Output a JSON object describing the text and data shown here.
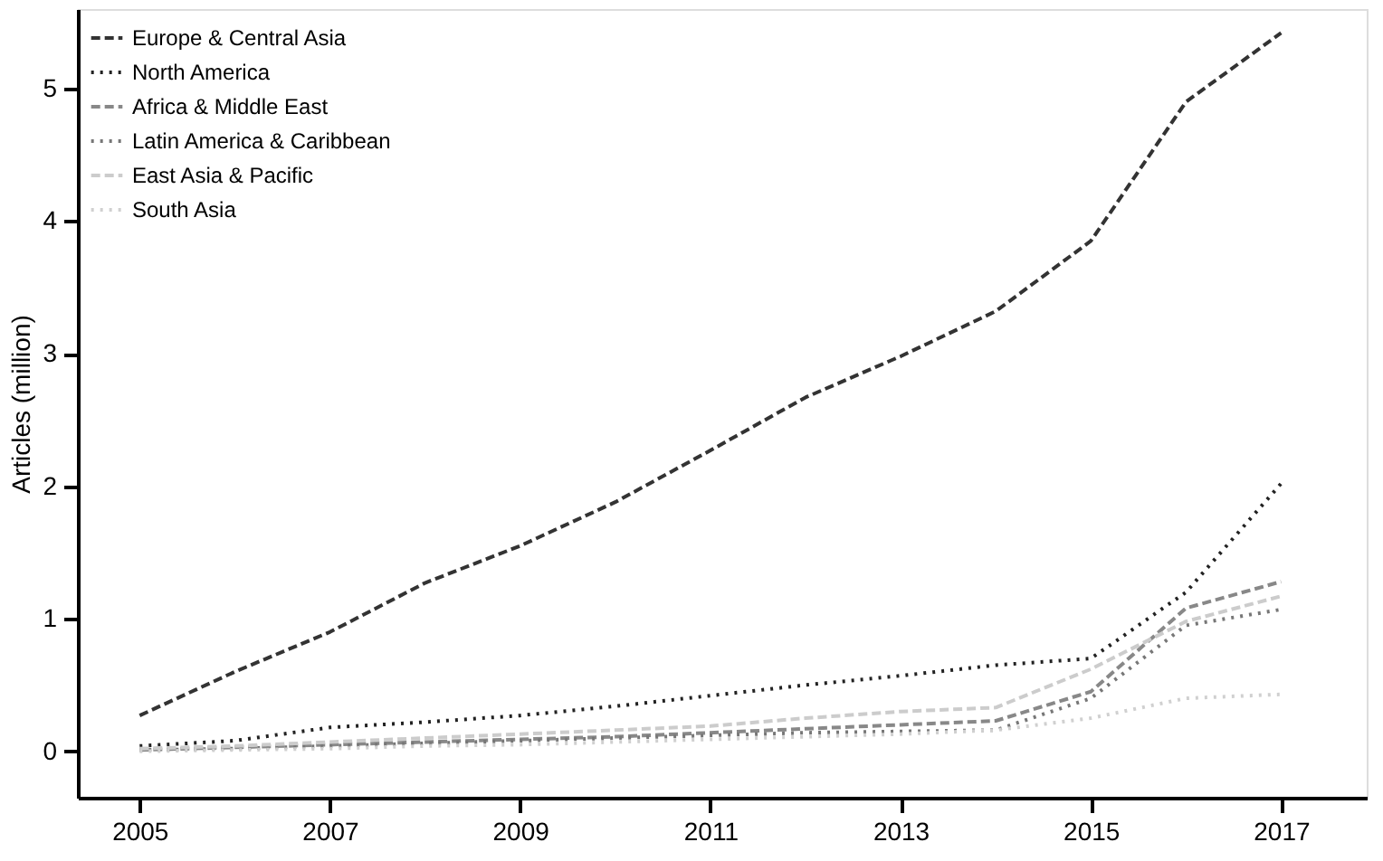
{
  "chart_data": {
    "type": "line",
    "ylabel": "Articles (million)",
    "x": [
      2005,
      2006,
      2007,
      2008,
      2009,
      2010,
      2011,
      2012,
      2013,
      2014,
      2015,
      2016,
      2017
    ],
    "xlim": [
      2004.35,
      2017.9
    ],
    "xticks": [
      2005,
      2007,
      2009,
      2011,
      2013,
      2015,
      2017
    ],
    "ylim": [
      -0.35,
      5.6
    ],
    "yticks": [
      0,
      1,
      2,
      3,
      4,
      5
    ],
    "grid": false,
    "legend": "top left",
    "series": [
      {
        "name": "Europe & Central Asia",
        "color": "#333333",
        "line_style": "dashed",
        "values": [
          0.27,
          0.6,
          0.9,
          1.27,
          1.55,
          1.88,
          2.27,
          2.67,
          2.98,
          3.32,
          3.85,
          4.9,
          5.42
        ]
      },
      {
        "name": "North America",
        "color": "#222222",
        "line_style": "dotted",
        "values": [
          0.04,
          0.08,
          0.18,
          0.22,
          0.27,
          0.34,
          0.42,
          0.5,
          0.57,
          0.65,
          0.7,
          1.2,
          2.02
        ]
      },
      {
        "name": "Africa & Middle East",
        "color": "#888888",
        "line_style": "dashed",
        "values": [
          0.01,
          0.03,
          0.05,
          0.07,
          0.09,
          0.11,
          0.14,
          0.17,
          0.2,
          0.23,
          0.45,
          1.08,
          1.28
        ]
      },
      {
        "name": "Latin America & Caribbean",
        "color": "#777777",
        "line_style": "dotted",
        "values": [
          0.01,
          0.02,
          0.04,
          0.06,
          0.08,
          0.1,
          0.12,
          0.14,
          0.15,
          0.16,
          0.4,
          0.95,
          1.07
        ]
      },
      {
        "name": "East Asia & Pacific",
        "color": "#cccccc",
        "line_style": "dashed",
        "values": [
          0.02,
          0.04,
          0.07,
          0.1,
          0.13,
          0.16,
          0.19,
          0.25,
          0.3,
          0.33,
          0.62,
          0.98,
          1.17
        ]
      },
      {
        "name": "South Asia",
        "color": "#d0d0d0",
        "line_style": "dotted",
        "values": [
          0,
          0.01,
          0.02,
          0.04,
          0.05,
          0.07,
          0.09,
          0.11,
          0.13,
          0.16,
          0.25,
          0.4,
          0.43
        ]
      }
    ]
  }
}
